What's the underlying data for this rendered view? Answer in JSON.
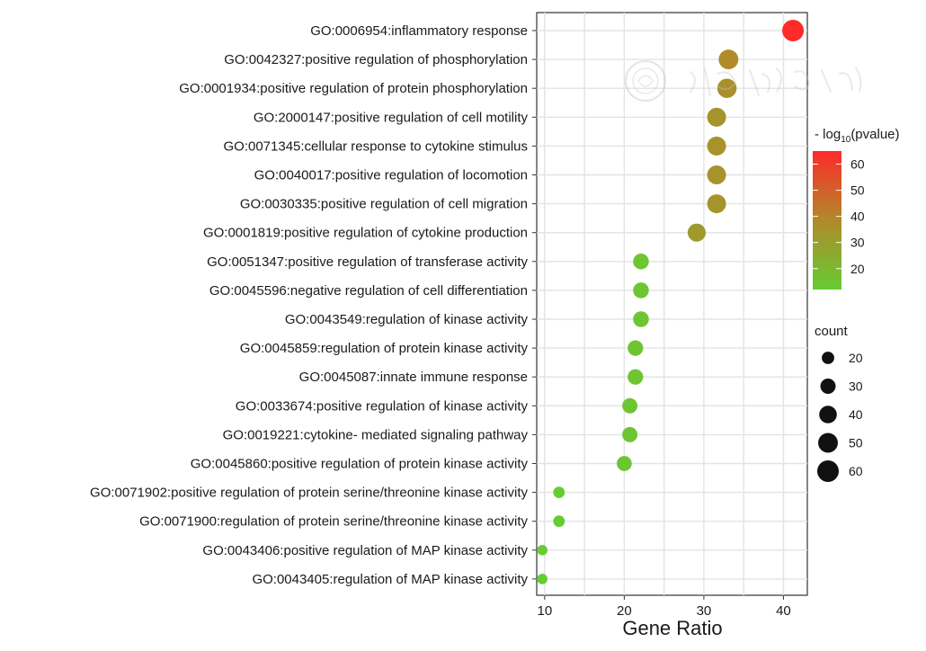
{
  "chart_data": {
    "type": "scatter",
    "title": "",
    "xlabel": "Gene Ratio",
    "ylabel": "",
    "xlim": [
      9,
      43
    ],
    "xticks": [
      10,
      20,
      30,
      40
    ],
    "grid": true,
    "categories": [
      "GO:0006954:inflammatory response",
      "GO:0042327:positive regulation of phosphorylation",
      "GO:0001934:positive regulation of protein phosphorylation",
      "GO:2000147:positive regulation of cell motility",
      "GO:0071345:cellular response to cytokine stimulus",
      "GO:0040017:positive regulation of locomotion",
      "GO:0030335:positive regulation of cell migration",
      "GO:0001819:positive regulation of cytokine production",
      "GO:0051347:positive regulation of transferase activity",
      "GO:0045596:negative regulation of cell differentiation",
      "GO:0043549:regulation of kinase activity",
      "GO:0045859:regulation of protein kinase activity",
      "GO:0045087:innate immune response",
      "GO:0033674:positive regulation of kinase activity",
      "GO:0019221:cytokine- mediated signaling pathway",
      "GO:0045860:positive regulation of protein kinase activity",
      "GO:0071902:positive regulation of protein serine/threonine kinase activity",
      "GO:0071900:regulation of protein serine/threonine kinase activity",
      "GO:0043406:positive regulation of MAP kinase activity",
      "GO:0043405:regulation of MAP kinase activity"
    ],
    "gene_ratio": [
      41.2,
      33.1,
      32.9,
      31.6,
      31.6,
      31.6,
      31.6,
      29.1,
      22.1,
      22.1,
      22.1,
      21.4,
      21.4,
      20.7,
      20.7,
      20.0,
      11.8,
      11.8,
      9.7,
      9.7
    ],
    "neg_log10_pvalue": [
      65,
      38,
      36,
      35,
      35,
      35,
      35,
      32,
      15,
      15,
      15,
      15,
      15,
      15,
      15,
      15,
      12,
      12,
      12,
      12
    ],
    "count": [
      60,
      50,
      48,
      46,
      46,
      46,
      46,
      42,
      32,
      32,
      32,
      31,
      31,
      30,
      30,
      29,
      17,
      17,
      14,
      14
    ],
    "color_legend": {
      "title_prefix": "- log",
      "title_sub": "10",
      "title_suffix": "(pvalue)",
      "ticks": [
        20,
        30,
        40,
        50,
        60
      ],
      "range": [
        12,
        65
      ],
      "color_low": "#66cc33",
      "color_mid": "#b08a2a",
      "color_high": "#ff2a2a"
    },
    "size_legend": {
      "title": "count",
      "values": [
        20,
        30,
        40,
        50,
        60
      ]
    }
  }
}
